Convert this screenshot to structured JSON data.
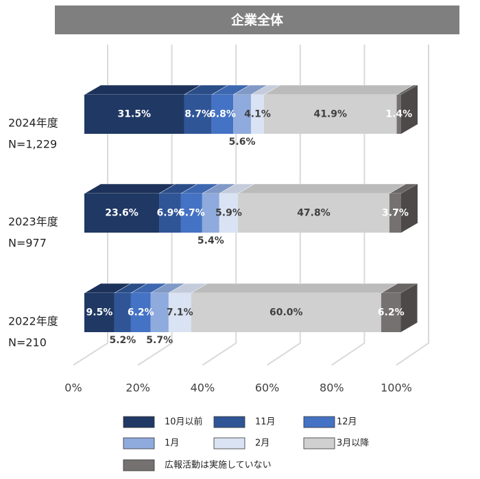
{
  "chart_data": {
    "type": "bar3d_stacked_horizontal",
    "title": "企業全体",
    "categories": [
      "2024年度",
      "2023年度",
      "2022年度"
    ],
    "sample_labels": [
      "N=1,229",
      "N=977",
      "N=210"
    ],
    "xlim": [
      0,
      100
    ],
    "xticks": [
      {
        "value": 0,
        "label": "0%"
      },
      {
        "value": 20,
        "label": "20%"
      },
      {
        "value": 40,
        "label": "40%"
      },
      {
        "value": 60,
        "label": "60%"
      },
      {
        "value": 80,
        "label": "80%"
      },
      {
        "value": 100,
        "label": "100%"
      }
    ],
    "grid": true,
    "series": [
      {
        "name": "10月以前",
        "color": "#1f3864",
        "values": [
          31.5,
          23.6,
          9.5
        ],
        "value_labels": [
          "31.5%",
          "23.6%",
          "9.5%"
        ]
      },
      {
        "name": "11月",
        "color": "#2f5597",
        "values": [
          8.7,
          6.9,
          5.2
        ],
        "value_labels": [
          "8.7%",
          "6.9%",
          "5.2%"
        ]
      },
      {
        "name": "12月",
        "color": "#4472c4",
        "values": [
          6.8,
          6.7,
          6.2
        ],
        "value_labels": [
          "6.8%",
          "6.7%",
          "6.2%"
        ]
      },
      {
        "name": "1月",
        "color": "#8faadc",
        "values": [
          5.6,
          5.4,
          5.7
        ],
        "value_labels": [
          "5.6%",
          "5.4%",
          "5.7%"
        ]
      },
      {
        "name": "2月",
        "color": "#dae3f3",
        "values": [
          4.1,
          5.9,
          7.1
        ],
        "value_labels": [
          "4.1%",
          "5.9%",
          "7.1%"
        ]
      },
      {
        "name": "3月以降",
        "color": "#d0d0d0",
        "values": [
          41.9,
          47.8,
          60.0
        ],
        "value_labels": [
          "41.9%",
          "47.8%",
          "60.0%"
        ]
      },
      {
        "name": "広報活動は実施していない",
        "color": "#767171",
        "values": [
          1.4,
          3.7,
          6.2
        ],
        "value_labels": [
          "1.4%",
          "3.7%",
          "6.2%"
        ]
      }
    ]
  }
}
